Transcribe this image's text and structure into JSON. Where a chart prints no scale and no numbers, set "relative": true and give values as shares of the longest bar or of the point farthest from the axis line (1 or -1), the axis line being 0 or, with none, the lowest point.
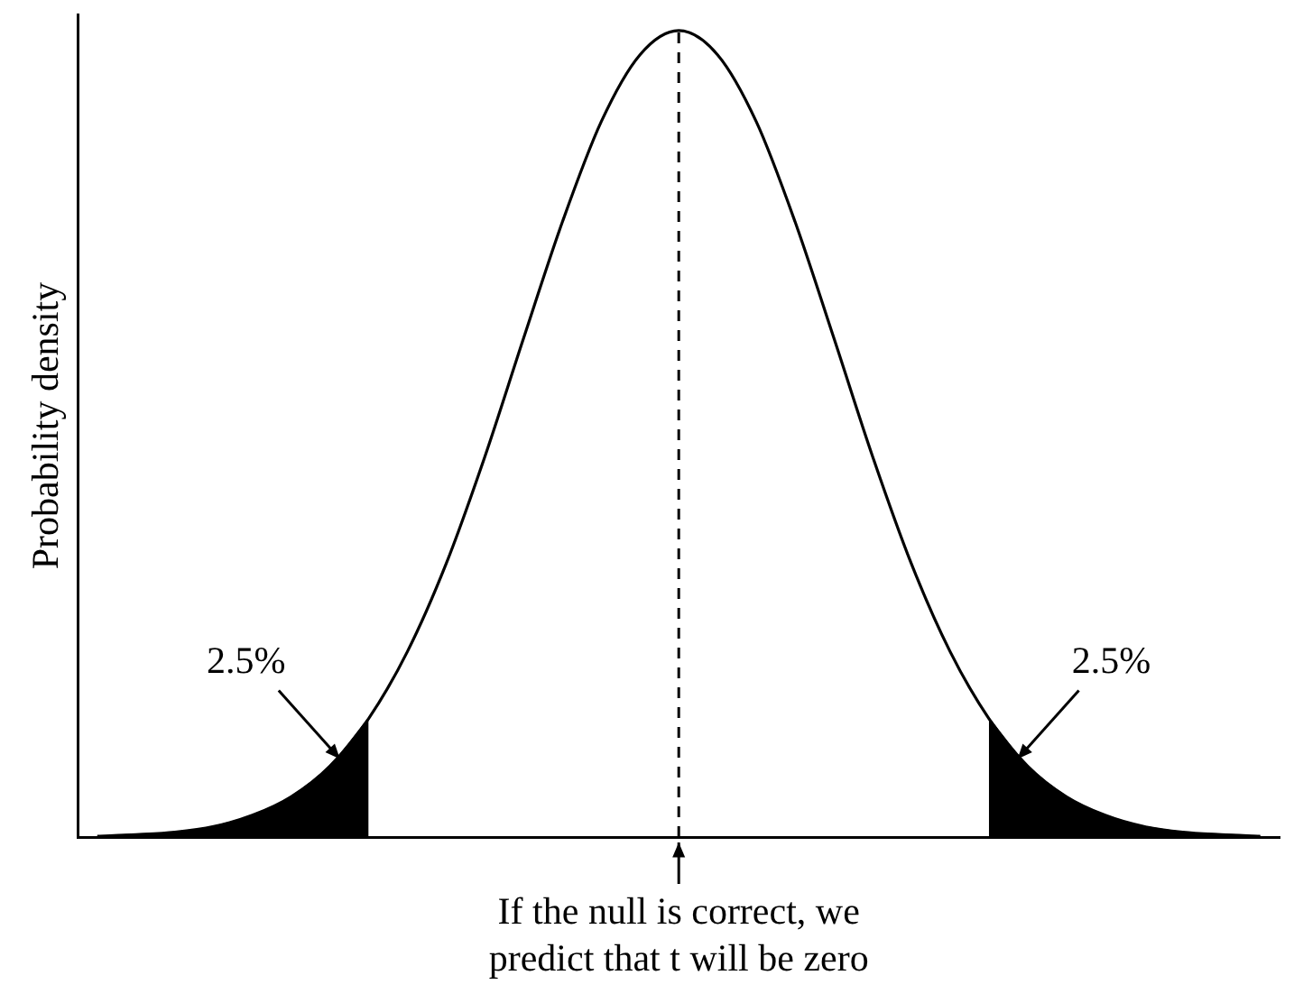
{
  "chart_data": {
    "type": "line",
    "relative": true,
    "ylabel": "Probability density",
    "categories": [
      null,
      null,
      null,
      null,
      null,
      null,
      null,
      null,
      null,
      null,
      null,
      null,
      null,
      null,
      null,
      null,
      null,
      null,
      null,
      null,
      null,
      null,
      null,
      null,
      null,
      null,
      null,
      null,
      null,
      null,
      null
    ],
    "tick_labels": false,
    "grid": false,
    "legend": false,
    "marker": "none",
    "series": [
      {
        "type": "line",
        "color": "#000000",
        "values": [
          0.001,
          0.003,
          0.006,
          0.013,
          0.027,
          0.05,
          0.088,
          0.147,
          0.23,
          0.339,
          0.472,
          0.619,
          0.763,
          0.887,
          0.97,
          1,
          0.97,
          0.887,
          0.763,
          0.619,
          0.472,
          0.339,
          0.23,
          0.147,
          0.088,
          0.05,
          0.027,
          0.013,
          0.006,
          0.003,
          0.001
        ]
      },
      {
        "type": "area",
        "color": "#000000",
        "values": [
          0.001,
          0.003,
          0.006,
          0.013,
          0.027,
          0.05,
          0.088,
          0.147,
          null,
          null,
          null,
          null,
          null,
          null,
          null,
          null,
          null,
          null,
          null,
          null,
          null,
          null,
          null,
          null,
          null,
          null,
          null,
          null,
          null,
          null,
          null
        ]
      },
      {
        "type": "area",
        "color": "#000000",
        "values": [
          null,
          null,
          null,
          null,
          null,
          null,
          null,
          null,
          null,
          null,
          null,
          null,
          null,
          null,
          null,
          null,
          null,
          null,
          null,
          null,
          null,
          null,
          null,
          0.147,
          0.088,
          0.05,
          0.027,
          0.013,
          0.006,
          0.003,
          0.001
        ]
      }
    ],
    "ref_lines": [
      {
        "axis": "x",
        "line_style": "dashed",
        "color": "#000000"
      }
    ],
    "annotations": [
      "2.5%",
      "2.5%",
      "If the null is correct, we predict that t will be zero"
    ]
  }
}
